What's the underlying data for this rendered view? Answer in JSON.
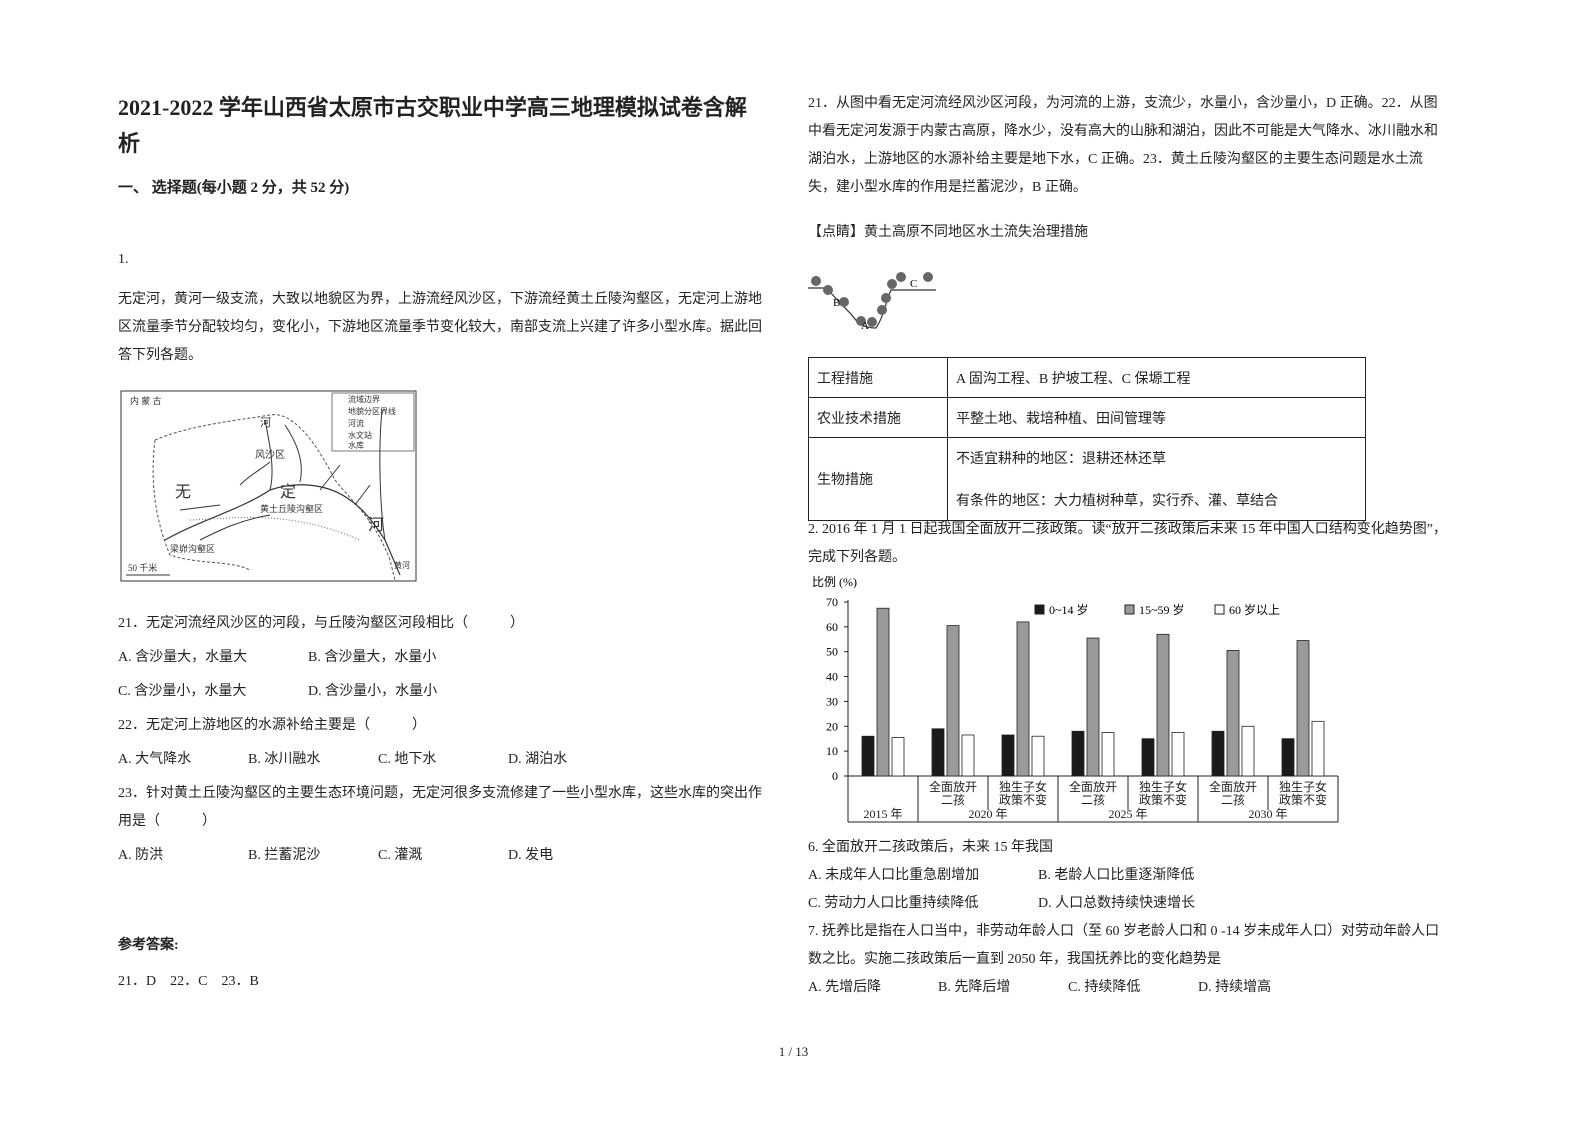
{
  "header": {
    "title": "2021-2022 学年山西省太原市古交职业中学高三地理模拟试卷含解析"
  },
  "section": "一、 选择题(每小题 2 分，共 52 分)",
  "q1": {
    "number": "1.",
    "stem": "无定河，黄河一级支流，大致以地貌区为界，上游流经风沙区，下游流经黄土丘陵沟壑区，无定河上游地区流量季节分配较均匀，变化小，下游地区流量季节变化较大，南部支流上兴建了许多小型水库。据此回答下列各题。",
    "map": {
      "labels": [
        "内 蒙 古",
        "流域边界",
        "地貌分区界线",
        "河流",
        "水文站",
        "水库",
        "风沙区",
        "无",
        "定",
        "河",
        "黄土丘陵沟壑区",
        "梁峁沟壑区",
        "50 千米",
        "河",
        "黄河"
      ]
    },
    "questions": [
      {
        "text": "21．无定河流经风沙区的河段，与丘陵沟壑区河段相比（　　　）",
        "options": [
          "A. 含沙量大，水量大",
          "B. 含沙量大，水量小",
          "C. 含沙量小，水量大",
          "D. 含沙量小，水量小"
        ]
      },
      {
        "text": "22．无定河上游地区的水源补给主要是（　　　）",
        "options": [
          "A. 大气降水",
          "B. 冰川融水",
          "C. 地下水",
          "D. 湖泊水"
        ]
      },
      {
        "text": "23．针对黄土丘陵沟壑区的主要生态环境问题，无定河很多支流修建了一些小型水库，这些水库的突出作用是（　　　）",
        "options": [
          "A. 防洪",
          "B. 拦蓄泥沙",
          "C. 灌溉",
          "D. 发电"
        ]
      }
    ]
  },
  "answer": {
    "label": "参考答案:",
    "text": "21．D　22．C　23．B"
  },
  "explanation": "21．从图中看无定河流经风沙区河段，为河流的上游，支流少，水量小，含沙量小，D 正确。22．从图中看无定河发源于内蒙古高原，降水少，没有高大的山脉和湖泊，因此不可能是大气降水、冰川融水和湖泊水，上游地区的水源补给主要是地下水，C 正确。23．黄土丘陵沟壑区的主要生态问题是水土流失，建小型水库的作用是拦蓄泥沙，B 正确。",
  "tip": "【点睛】黄土高原不同地区水土流失治理措施",
  "diagram": {
    "labels": [
      "A",
      "B",
      "C"
    ]
  },
  "table": {
    "rows": [
      [
        "工程措施",
        [
          "A 固沟工程、B 护坡工程、C 保塬工程"
        ]
      ],
      [
        "农业技术措施",
        [
          "平整土地、栽培种植、田间管理等"
        ]
      ],
      [
        "生物措施",
        [
          "不适宜耕种的地区：退耕还林还草",
          "有条件的地区：大力植树种草，实行乔、灌、草结合"
        ]
      ]
    ]
  },
  "q2": {
    "stem": "2. 2016 年 1 月 1 日起我国全面放开二孩政策。读“放开二孩政策后未来 15 年中国人口结构变化趋势图”，完成下列各题。",
    "questions": [
      {
        "text": "6.  全面放开二孩政策后，未来 15 年我国",
        "options": [
          "A.  未成年人口比重急剧增加",
          "B.  老龄人口比重逐渐降低",
          "C.  劳动力人口比重持续降低",
          "D.  人口总数持续快速增长"
        ]
      },
      {
        "text": "7.  抚养比是指在人口当中，非劳动年龄人口（至 60 岁老龄人口和 0 -14 岁未成年人口）对劳动年龄人口数之比。实施二孩政策后一直到 2050 年，我国抚养比的变化趋势是",
        "options": [
          "A.  先增后降",
          "B.  先降后增",
          "C.  持续降低",
          "D.  持续增高"
        ]
      }
    ]
  },
  "chart_data": {
    "type": "bar",
    "ylabel": "比例 (%)",
    "categories": [
      null,
      "全面放开二孩",
      "独生子女政策不变",
      "全面放开二孩",
      "独生子女政策不变",
      "全面放开二孩",
      "独生子女政策不变"
    ],
    "category_groups": [
      "2015 年",
      "2020 年",
      "2025 年",
      "2030 年"
    ],
    "series": [
      {
        "name": "0~14 岁",
        "color": "#1a1a1a",
        "values": [
          16,
          19,
          16.5,
          18,
          15,
          18,
          15
        ]
      },
      {
        "name": "15~59 岁",
        "color": "#9a9a9a",
        "values": [
          67.5,
          60.5,
          62,
          55.5,
          57,
          50.5,
          54.5
        ]
      },
      {
        "name": "60 岁以上",
        "color": "#ffffff",
        "values": [
          15.5,
          16.5,
          16,
          17.5,
          17.5,
          20,
          22
        ]
      }
    ],
    "ylim": [
      0,
      70
    ],
    "yticks": [
      0,
      10,
      20,
      30,
      40,
      50,
      60,
      70
    ],
    "grid": false
  },
  "footer": {
    "page": "1 / 13"
  }
}
